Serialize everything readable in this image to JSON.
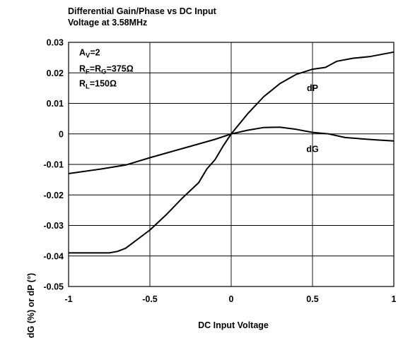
{
  "chart_data": {
    "type": "line",
    "title": [
      "Differential Gain/Phase vs DC Input",
      "Voltage at 3.58MHz"
    ],
    "xlabel": "DC Input Voltage",
    "ylabel": "dG (%) or dP (°)",
    "xlim": [
      -1,
      1
    ],
    "ylim": [
      -0.05,
      0.03
    ],
    "x_ticks": [
      -1,
      -0.5,
      0,
      0.5,
      1
    ],
    "x_tick_labels": [
      "-1",
      "-0.5",
      "0",
      "0.5",
      "1"
    ],
    "y_ticks": [
      0.03,
      0.02,
      0.01,
      0,
      -0.01,
      -0.02,
      -0.03,
      -0.04,
      -0.05
    ],
    "y_tick_labels": [
      "0.03",
      "0.02",
      "0.01",
      "0",
      "-0.01",
      "-0.02",
      "-0.03",
      "-0.04",
      "-0.05"
    ],
    "grid": true,
    "annotations": [
      {
        "base": "A",
        "sub": "V",
        "rest": "=2"
      },
      {
        "base": "R",
        "sub": "F",
        "mid": "=R",
        "sub2": "G",
        "rest": "=375Ω"
      },
      {
        "base": "R",
        "sub": "L",
        "rest": "=150Ω"
      }
    ],
    "series": [
      {
        "name": "dP",
        "points": [
          [
            -1,
            -0.039
          ],
          [
            -0.9,
            -0.039
          ],
          [
            -0.75,
            -0.039
          ],
          [
            -0.7,
            -0.0385
          ],
          [
            -0.65,
            -0.0375
          ],
          [
            -0.6,
            -0.0355
          ],
          [
            -0.5,
            -0.0315
          ],
          [
            -0.4,
            -0.0265
          ],
          [
            -0.3,
            -0.021
          ],
          [
            -0.2,
            -0.016
          ],
          [
            -0.15,
            -0.0115
          ],
          [
            -0.1,
            -0.0085
          ],
          [
            -0.05,
            -0.004
          ],
          [
            0,
            0
          ],
          [
            0.1,
            0.0065
          ],
          [
            0.2,
            0.0122
          ],
          [
            0.3,
            0.0165
          ],
          [
            0.4,
            0.0195
          ],
          [
            0.5,
            0.0212
          ],
          [
            0.58,
            0.0218
          ],
          [
            0.65,
            0.0238
          ],
          [
            0.75,
            0.0248
          ],
          [
            0.85,
            0.0253
          ],
          [
            1,
            0.0268
          ]
        ]
      },
      {
        "name": "dG",
        "points": [
          [
            -1,
            -0.013
          ],
          [
            -0.8,
            -0.0115
          ],
          [
            -0.65,
            -0.0102
          ],
          [
            -0.5,
            -0.0078
          ],
          [
            -0.3,
            -0.0048
          ],
          [
            -0.1,
            -0.0018
          ],
          [
            0,
            0
          ],
          [
            0.1,
            0.0012
          ],
          [
            0.2,
            0.0021
          ],
          [
            0.3,
            0.0022
          ],
          [
            0.4,
            0.0015
          ],
          [
            0.5,
            0.0005
          ],
          [
            0.6,
            0
          ],
          [
            0.7,
            -0.0012
          ],
          [
            0.8,
            -0.0016
          ],
          [
            0.9,
            -0.002
          ],
          [
            1,
            -0.0023
          ]
        ]
      }
    ]
  }
}
